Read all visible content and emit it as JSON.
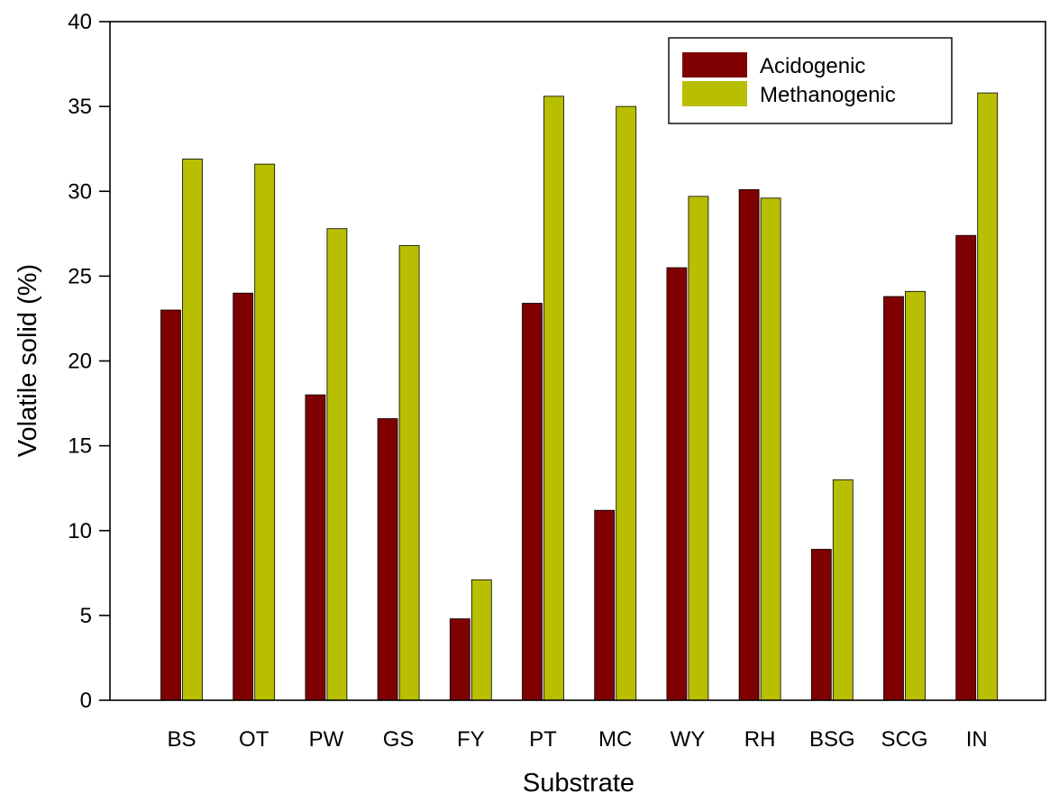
{
  "chart_data": {
    "type": "bar",
    "xlabel": "Substrate",
    "ylabel": "Volatile solid (%)",
    "ylim": [
      0,
      40
    ],
    "yticks": [
      0,
      5,
      10,
      15,
      20,
      25,
      30,
      35,
      40
    ],
    "categories": [
      "BS",
      "OT",
      "PW",
      "GS",
      "FY",
      "PT",
      "MC",
      "WY",
      "RH",
      "BSG",
      "SCG",
      "IN"
    ],
    "series": [
      {
        "name": "Acidogenic",
        "color": "#7f0000",
        "values": [
          23.0,
          24.0,
          18.0,
          16.6,
          4.8,
          23.4,
          11.2,
          25.5,
          30.1,
          8.9,
          23.8,
          27.4
        ]
      },
      {
        "name": "Methanogenic",
        "color": "#b8be00",
        "values": [
          31.9,
          31.6,
          27.8,
          26.8,
          7.1,
          35.6,
          35.0,
          29.7,
          29.6,
          13.0,
          24.1,
          35.8
        ]
      }
    ],
    "legend_position": "top-right",
    "grid": false
  }
}
